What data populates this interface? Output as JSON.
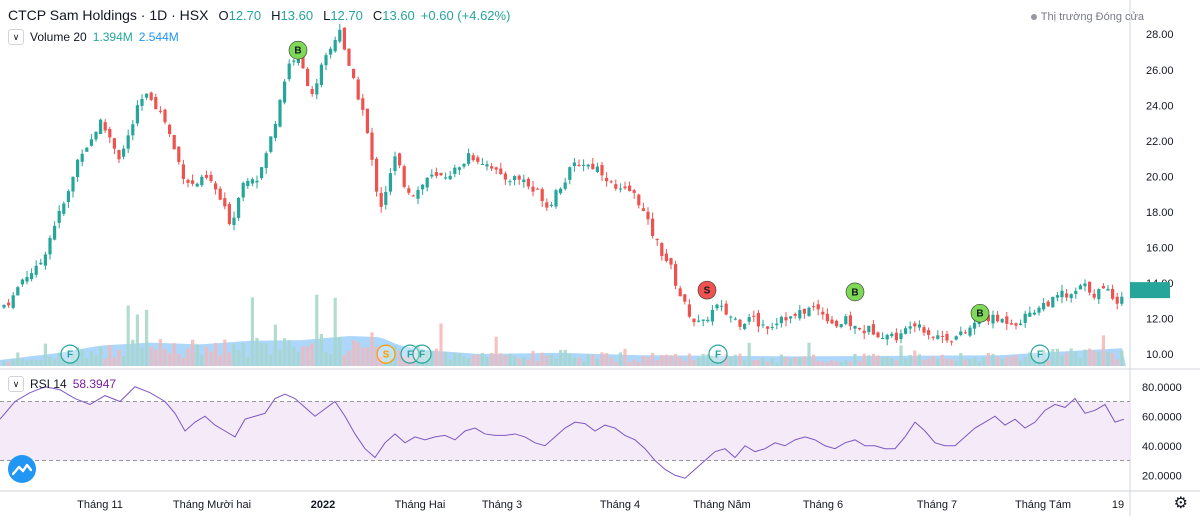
{
  "header": {
    "symbol": "CTCP Sam Holdings · 1D · HSX",
    "o_label": "O",
    "o_val": "12.70",
    "h_label": "H",
    "h_val": "13.60",
    "l_label": "L",
    "l_val": "12.70",
    "c_label": "C",
    "c_val": "13.60",
    "change": "+0.60 (+4.62%)"
  },
  "market_status": "Thị trường Đóng cửa",
  "volume_legend": {
    "label": "Volume 20",
    "v1": "1.394M",
    "v2": "2.544M"
  },
  "rsi_legend": {
    "label": "RSI 14",
    "value": "58.3947"
  },
  "icons": {
    "collapse": "chevron-down-icon",
    "logo": "tradingview-logo-icon",
    "settings": "gear-icon"
  },
  "colors": {
    "up": "#26a69a",
    "down": "#ef5350",
    "rsi": "#7e57c2",
    "rsi_band": "#f3e5f5",
    "volume_ma": "#90caf9"
  },
  "chart_data": [
    {
      "type": "candlestick",
      "ylim": [
        9.5,
        28.8
      ],
      "yticks": [
        "28.00",
        "26.00",
        "24.00",
        "22.00",
        "20.00",
        "18.00",
        "16.00",
        "14.00",
        "12.00",
        "10.00"
      ],
      "ytick_values": [
        28,
        26,
        24,
        22,
        20,
        18,
        16,
        14,
        12,
        10
      ],
      "xticks": [
        "Tháng 11",
        "Tháng Mười hai",
        "2022",
        "Tháng Hai",
        "Tháng 3",
        "Tháng 4",
        "Tháng Năm",
        "Tháng 6",
        "Tháng 7",
        "Tháng Tám",
        "19"
      ],
      "close_path": [
        [
          0,
          12.6
        ],
        [
          12,
          13.1
        ],
        [
          22,
          14.2
        ],
        [
          30,
          14.6
        ],
        [
          38,
          14.8
        ],
        [
          46,
          15.9
        ],
        [
          55,
          17.4
        ],
        [
          62,
          18.2
        ],
        [
          70,
          19.3
        ],
        [
          80,
          21.4
        ],
        [
          90,
          21.9
        ],
        [
          100,
          23.1
        ],
        [
          110,
          22.2
        ],
        [
          120,
          21.0
        ],
        [
          130,
          22.5
        ],
        [
          140,
          24.2
        ],
        [
          150,
          24.6
        ],
        [
          158,
          23.8
        ],
        [
          166,
          23.0
        ],
        [
          176,
          21.2
        ],
        [
          184,
          20.0
        ],
        [
          192,
          19.5
        ],
        [
          200,
          19.7
        ],
        [
          208,
          19.9
        ],
        [
          216,
          19.2
        ],
        [
          224,
          18.2
        ],
        [
          232,
          17.2
        ],
        [
          240,
          19.4
        ],
        [
          250,
          20.1
        ],
        [
          258,
          19.9
        ],
        [
          266,
          21.2
        ],
        [
          274,
          22.8
        ],
        [
          282,
          24.9
        ],
        [
          290,
          26.5
        ],
        [
          298,
          26.8
        ],
        [
          306,
          25.5
        ],
        [
          314,
          24.5
        ],
        [
          322,
          26.2
        ],
        [
          332,
          27.3
        ],
        [
          340,
          28.4
        ],
        [
          348,
          26.2
        ],
        [
          356,
          24.9
        ],
        [
          364,
          23.5
        ],
        [
          372,
          20.8
        ],
        [
          380,
          18.2
        ],
        [
          388,
          19.6
        ],
        [
          396,
          21.2
        ],
        [
          404,
          19.6
        ],
        [
          412,
          19.0
        ],
        [
          420,
          19.3
        ],
        [
          428,
          20.0
        ],
        [
          436,
          19.9
        ],
        [
          444,
          20.0
        ],
        [
          452,
          20.3
        ],
        [
          460,
          20.4
        ],
        [
          468,
          21.3
        ],
        [
          476,
          21.0
        ],
        [
          484,
          20.8
        ],
        [
          492,
          20.6
        ],
        [
          500,
          19.9
        ],
        [
          508,
          19.9
        ],
        [
          516,
          19.9
        ],
        [
          524,
          19.8
        ],
        [
          532,
          19.2
        ],
        [
          540,
          19.1
        ],
        [
          548,
          18.2
        ],
        [
          556,
          19.2
        ],
        [
          564,
          19.7
        ],
        [
          572,
          20.5
        ],
        [
          580,
          20.8
        ],
        [
          590,
          20.6
        ],
        [
          598,
          20.5
        ],
        [
          606,
          20.0
        ],
        [
          614,
          19.3
        ],
        [
          622,
          19.1
        ],
        [
          630,
          19.2
        ],
        [
          638,
          18.7
        ],
        [
          646,
          17.6
        ],
        [
          654,
          16.6
        ],
        [
          662,
          15.7
        ],
        [
          670,
          15.0
        ],
        [
          678,
          13.6
        ],
        [
          686,
          12.6
        ],
        [
          694,
          11.9
        ],
        [
          702,
          11.6
        ],
        [
          710,
          12.3
        ],
        [
          718,
          12.7
        ],
        [
          726,
          12.3
        ],
        [
          734,
          12.0
        ],
        [
          742,
          11.7
        ],
        [
          750,
          12.3
        ],
        [
          758,
          11.7
        ],
        [
          766,
          11.6
        ],
        [
          774,
          11.7
        ],
        [
          782,
          12.2
        ],
        [
          790,
          12.0
        ],
        [
          798,
          12.2
        ],
        [
          806,
          12.5
        ],
        [
          814,
          12.6
        ],
        [
          822,
          12.4
        ],
        [
          830,
          11.9
        ],
        [
          838,
          11.6
        ],
        [
          846,
          11.9
        ],
        [
          854,
          11.5
        ],
        [
          862,
          11.3
        ],
        [
          870,
          11.4
        ],
        [
          878,
          11.2
        ],
        [
          886,
          11.1
        ],
        [
          894,
          11.0
        ],
        [
          902,
          11.0
        ],
        [
          910,
          11.8
        ],
        [
          918,
          11.8
        ],
        [
          926,
          11.3
        ],
        [
          934,
          11.0
        ],
        [
          942,
          11.0
        ],
        [
          950,
          10.9
        ],
        [
          958,
          11.0
        ],
        [
          966,
          11.2
        ],
        [
          974,
          11.7
        ],
        [
          982,
          12.1
        ],
        [
          990,
          12.0
        ],
        [
          998,
          11.9
        ],
        [
          1006,
          11.9
        ],
        [
          1014,
          11.8
        ],
        [
          1022,
          11.9
        ],
        [
          1030,
          12.4
        ],
        [
          1038,
          12.6
        ],
        [
          1046,
          12.9
        ],
        [
          1054,
          13.0
        ],
        [
          1062,
          13.4
        ],
        [
          1070,
          13.1
        ],
        [
          1078,
          13.7
        ],
        [
          1086,
          13.8
        ],
        [
          1094,
          13.4
        ],
        [
          1102,
          13.6
        ],
        [
          1110,
          13.5
        ],
        [
          1118,
          13.0
        ],
        [
          1124,
          13.6
        ]
      ],
      "signals": [
        {
          "label": "B",
          "color": "#7ed957",
          "x": 298,
          "y": 27.1
        },
        {
          "label": "S",
          "color": "#ef5350",
          "x": 707,
          "y": 13.6
        },
        {
          "label": "B",
          "color": "#7ed957",
          "x": 855,
          "y": 13.5
        },
        {
          "label": "B",
          "color": "#7ed957",
          "x": 980,
          "y": 12.3
        },
        {
          "label": "F",
          "color": "#26a69a",
          "x": 70,
          "y": 10.0
        },
        {
          "label": "S",
          "color": "#ff9800",
          "x": 386,
          "y": 10.0
        },
        {
          "label": "F",
          "color": "#26a69a",
          "x": 410,
          "y": 10.0
        },
        {
          "label": "F",
          "color": "#26a69a",
          "x": 422,
          "y": 10.0
        },
        {
          "label": "F",
          "color": "#26a69a",
          "x": 718,
          "y": 10.0
        },
        {
          "label": "F",
          "color": "#26a69a",
          "x": 1040,
          "y": 10.0
        }
      ]
    },
    {
      "type": "bar",
      "name": "Volume 20",
      "volume_ma_path": [
        [
          0,
          0.1
        ],
        [
          60,
          0.22
        ],
        [
          100,
          0.34
        ],
        [
          150,
          0.39
        ],
        [
          200,
          0.36
        ],
        [
          250,
          0.42
        ],
        [
          300,
          0.43
        ],
        [
          350,
          0.5
        ],
        [
          380,
          0.48
        ],
        [
          400,
          0.34
        ],
        [
          430,
          0.26
        ],
        [
          480,
          0.2
        ],
        [
          560,
          0.22
        ],
        [
          640,
          0.18
        ],
        [
          720,
          0.17
        ],
        [
          800,
          0.16
        ],
        [
          900,
          0.17
        ],
        [
          1000,
          0.18
        ],
        [
          1060,
          0.24
        ],
        [
          1126,
          0.3
        ]
      ]
    },
    {
      "type": "line",
      "name": "RSI 14",
      "ylim": [
        10,
        90
      ],
      "yticks": [
        "80.0000",
        "60.0000",
        "40.0000",
        "20.0000"
      ],
      "ytick_values": [
        80,
        60,
        40,
        20
      ],
      "band": [
        30,
        70
      ],
      "rsi_path": [
        [
          0,
          58
        ],
        [
          15,
          70
        ],
        [
          30,
          76
        ],
        [
          45,
          80
        ],
        [
          60,
          78
        ],
        [
          75,
          72
        ],
        [
          90,
          68
        ],
        [
          105,
          74
        ],
        [
          120,
          70
        ],
        [
          135,
          80
        ],
        [
          150,
          76
        ],
        [
          165,
          70
        ],
        [
          175,
          62
        ],
        [
          185,
          50
        ],
        [
          195,
          56
        ],
        [
          205,
          60
        ],
        [
          215,
          54
        ],
        [
          225,
          50
        ],
        [
          235,
          46
        ],
        [
          245,
          58
        ],
        [
          255,
          60
        ],
        [
          265,
          62
        ],
        [
          275,
          72
        ],
        [
          285,
          75
        ],
        [
          295,
          72
        ],
        [
          305,
          66
        ],
        [
          315,
          60
        ],
        [
          325,
          65
        ],
        [
          335,
          70
        ],
        [
          345,
          60
        ],
        [
          355,
          48
        ],
        [
          365,
          38
        ],
        [
          375,
          32
        ],
        [
          385,
          42
        ],
        [
          395,
          48
        ],
        [
          405,
          42
        ],
        [
          415,
          46
        ],
        [
          425,
          44
        ],
        [
          435,
          46
        ],
        [
          445,
          47
        ],
        [
          455,
          44
        ],
        [
          465,
          50
        ],
        [
          475,
          52
        ],
        [
          485,
          48
        ],
        [
          495,
          47
        ],
        [
          505,
          47
        ],
        [
          515,
          48
        ],
        [
          525,
          46
        ],
        [
          535,
          42
        ],
        [
          545,
          40
        ],
        [
          555,
          46
        ],
        [
          565,
          52
        ],
        [
          575,
          56
        ],
        [
          585,
          55
        ],
        [
          595,
          50
        ],
        [
          605,
          54
        ],
        [
          615,
          52
        ],
        [
          625,
          47
        ],
        [
          635,
          44
        ],
        [
          645,
          38
        ],
        [
          655,
          30
        ],
        [
          665,
          24
        ],
        [
          675,
          20
        ],
        [
          685,
          18
        ],
        [
          695,
          24
        ],
        [
          705,
          30
        ],
        [
          715,
          36
        ],
        [
          725,
          38
        ],
        [
          735,
          32
        ],
        [
          745,
          40
        ],
        [
          755,
          36
        ],
        [
          765,
          38
        ],
        [
          775,
          42
        ],
        [
          785,
          40
        ],
        [
          795,
          44
        ],
        [
          805,
          46
        ],
        [
          815,
          44
        ],
        [
          825,
          40
        ],
        [
          835,
          38
        ],
        [
          845,
          42
        ],
        [
          855,
          44
        ],
        [
          865,
          40
        ],
        [
          875,
          40
        ],
        [
          885,
          38
        ],
        [
          895,
          38
        ],
        [
          905,
          46
        ],
        [
          915,
          56
        ],
        [
          925,
          50
        ],
        [
          935,
          42
        ],
        [
          945,
          40
        ],
        [
          955,
          40
        ],
        [
          965,
          46
        ],
        [
          975,
          52
        ],
        [
          985,
          56
        ],
        [
          995,
          60
        ],
        [
          1005,
          54
        ],
        [
          1015,
          58
        ],
        [
          1025,
          52
        ],
        [
          1035,
          56
        ],
        [
          1045,
          64
        ],
        [
          1055,
          68
        ],
        [
          1065,
          66
        ],
        [
          1075,
          72
        ],
        [
          1085,
          62
        ],
        [
          1095,
          64
        ],
        [
          1105,
          68
        ],
        [
          1115,
          56
        ],
        [
          1124,
          58
        ]
      ]
    }
  ]
}
